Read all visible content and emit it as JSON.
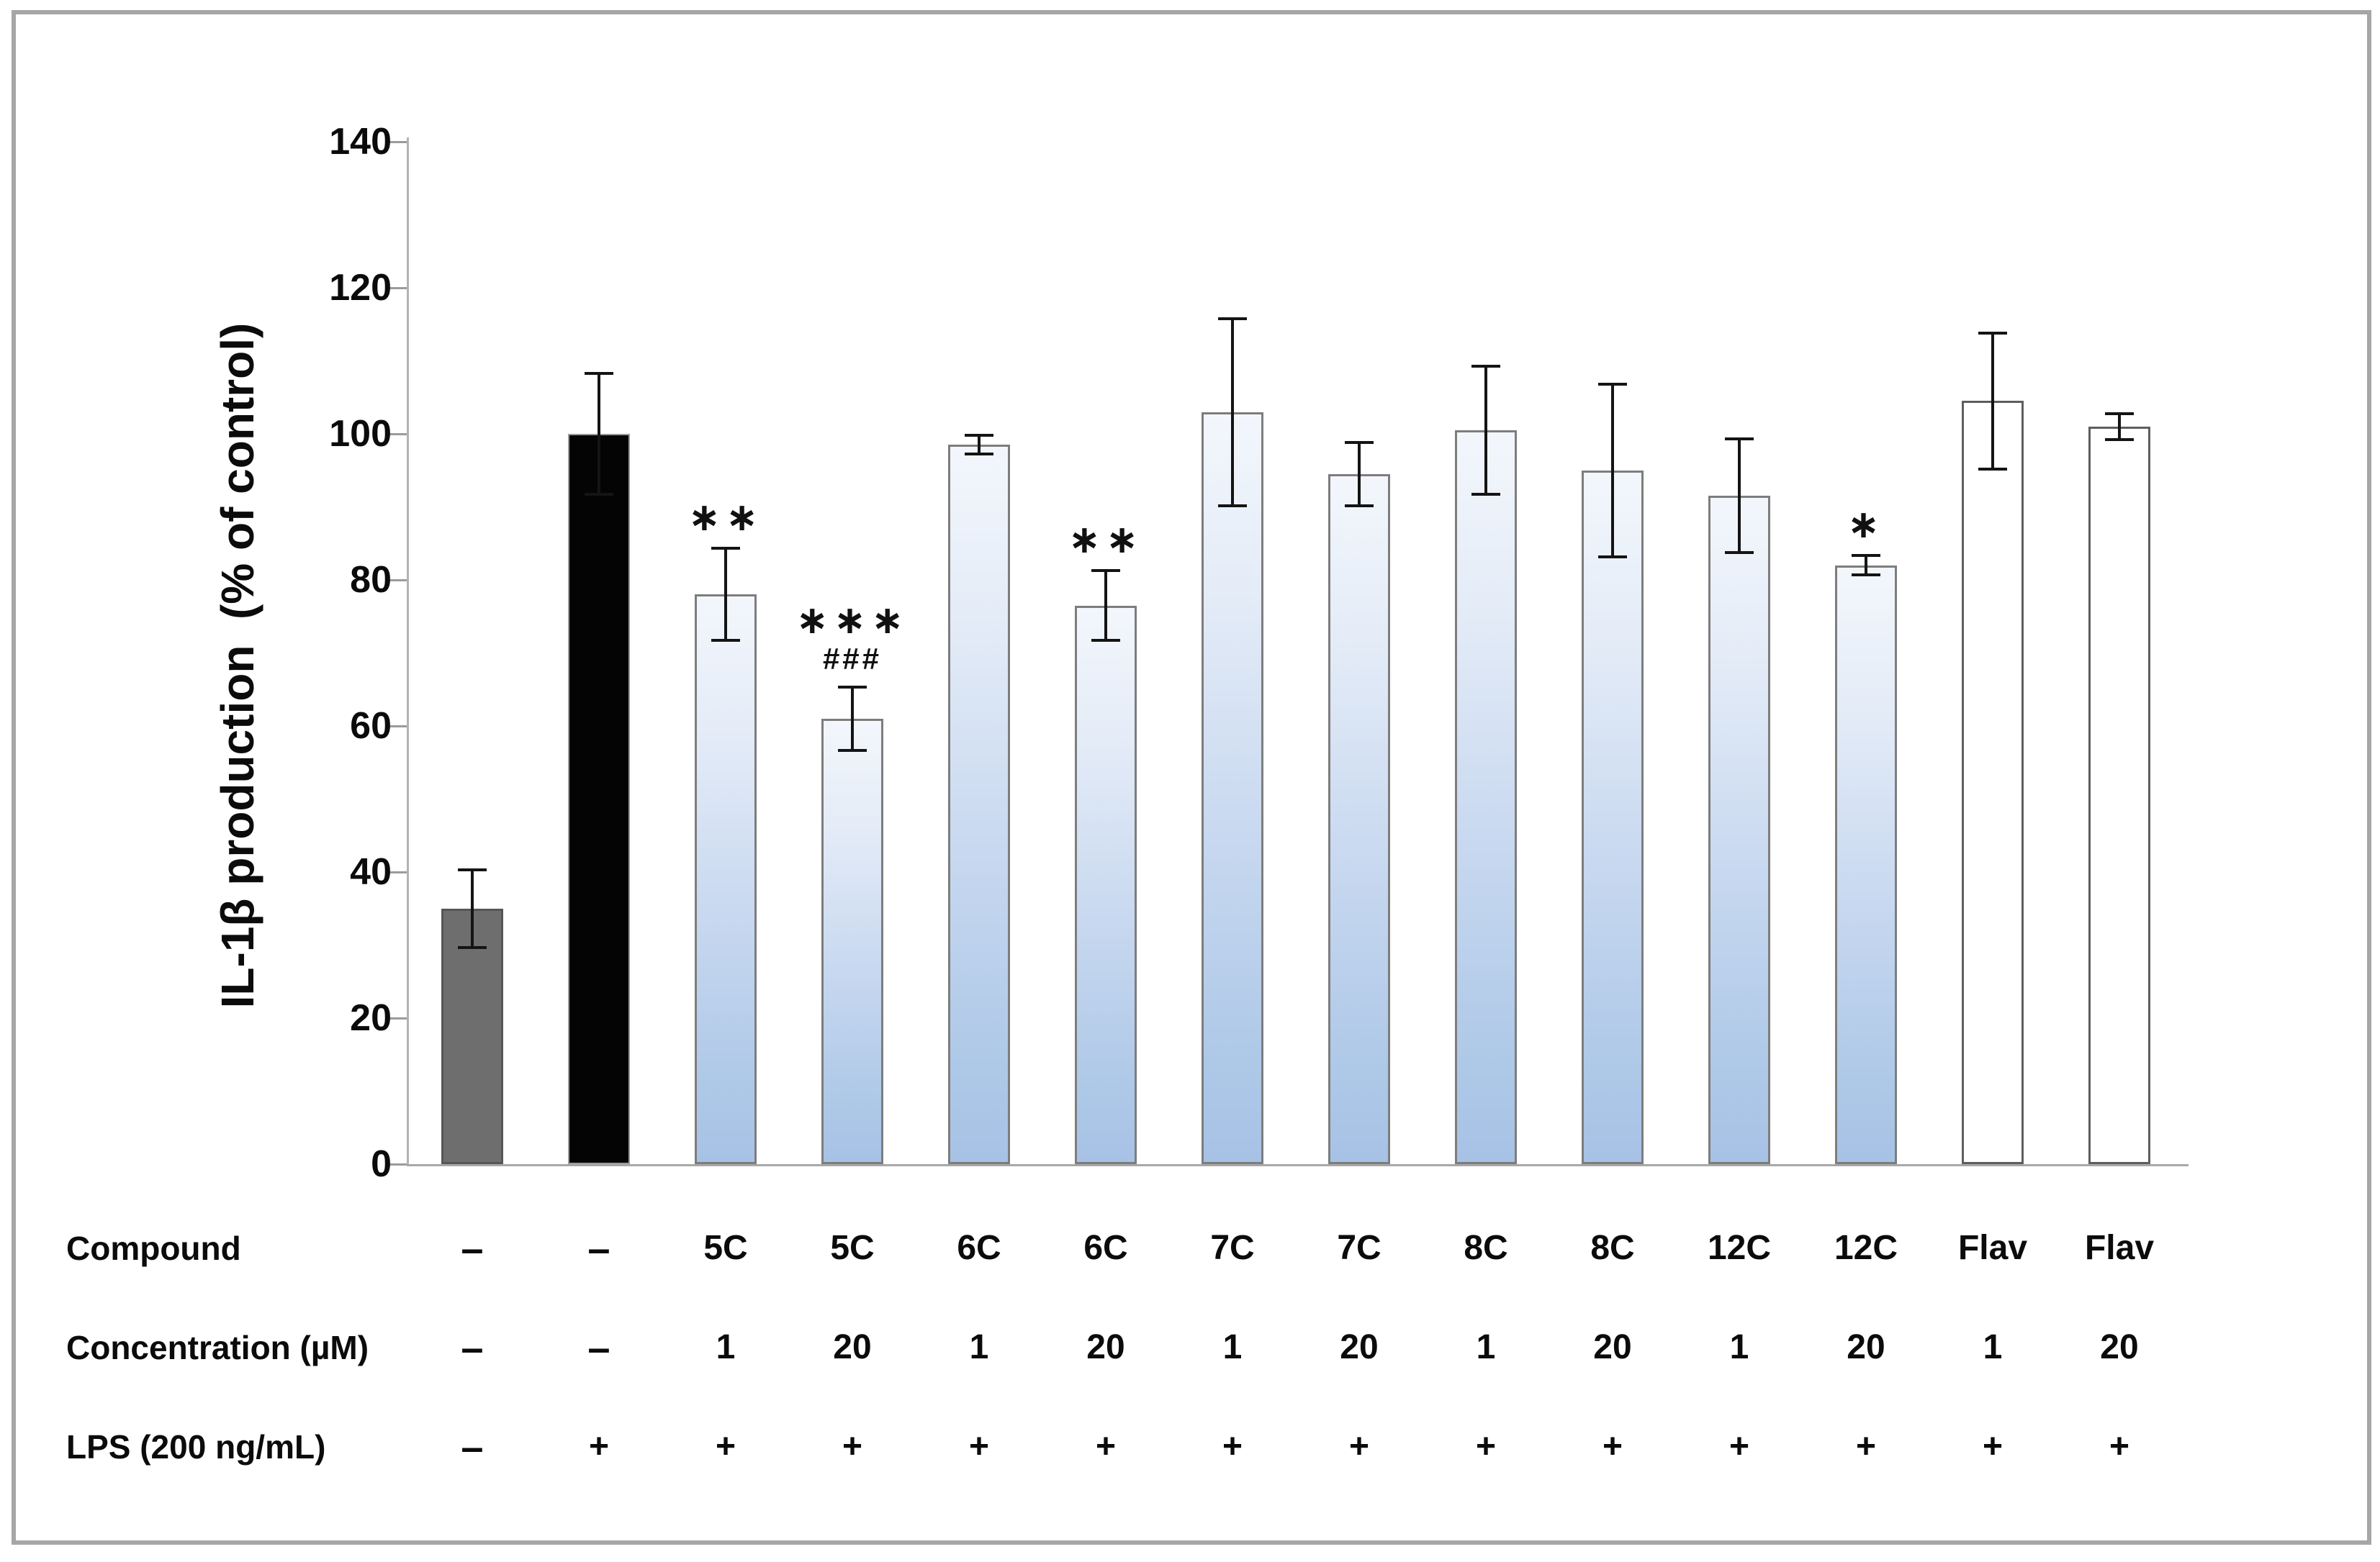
{
  "chart_data": {
    "type": "bar",
    "title": "",
    "ylabel": "IL-1β production  (% of control)",
    "xlabel": "",
    "ylim": [
      0,
      140
    ],
    "yticks": [
      140,
      120,
      100,
      80,
      60,
      40,
      20,
      0
    ],
    "grid": "off",
    "legend": "none",
    "row_labels": [
      "Compound",
      "Concentration (µM)",
      "LPS (200 ng/mL)"
    ],
    "bars": [
      {
        "compound": "–",
        "concentration": "–",
        "lps": "–",
        "value": 35,
        "error": 5.5,
        "style": "gray",
        "annotations": []
      },
      {
        "compound": "–",
        "concentration": "–",
        "lps": "+",
        "value": 100,
        "error": 8.5,
        "style": "black",
        "annotations": []
      },
      {
        "compound": "5C",
        "concentration": "1",
        "lps": "+",
        "value": 78,
        "error": 6.5,
        "style": "blue",
        "annotations": [
          "∗∗"
        ]
      },
      {
        "compound": "5C",
        "concentration": "20",
        "lps": "+",
        "value": 61,
        "error": 4.5,
        "style": "blue",
        "annotations": [
          "∗∗∗",
          "###"
        ]
      },
      {
        "compound": "6C",
        "concentration": "1",
        "lps": "+",
        "value": 98.5,
        "error": 1.5,
        "style": "blue",
        "annotations": []
      },
      {
        "compound": "6C",
        "concentration": "20",
        "lps": "+",
        "value": 76.5,
        "error": 5,
        "style": "blue",
        "annotations": [
          "∗∗"
        ]
      },
      {
        "compound": "7C",
        "concentration": "1",
        "lps": "+",
        "value": 103,
        "error": 13,
        "style": "blue",
        "annotations": []
      },
      {
        "compound": "7C",
        "concentration": "20",
        "lps": "+",
        "value": 94.5,
        "error": 4.5,
        "style": "blue",
        "annotations": []
      },
      {
        "compound": "8C",
        "concentration": "1",
        "lps": "+",
        "value": 100.5,
        "error": 9,
        "style": "blue",
        "annotations": []
      },
      {
        "compound": "8C",
        "concentration": "20",
        "lps": "+",
        "value": 95,
        "error": 12,
        "style": "blue",
        "annotations": []
      },
      {
        "compound": "12C",
        "concentration": "1",
        "lps": "+",
        "value": 91.5,
        "error": 8,
        "style": "blue",
        "annotations": []
      },
      {
        "compound": "12C",
        "concentration": "20",
        "lps": "+",
        "value": 82,
        "error": 1.5,
        "style": "blue",
        "annotations": [
          "∗"
        ]
      },
      {
        "compound": "Flav",
        "concentration": "1",
        "lps": "+",
        "value": 104.5,
        "error": 9.5,
        "style": "white",
        "annotations": []
      },
      {
        "compound": "Flav",
        "concentration": "20",
        "lps": "+",
        "value": 101,
        "error": 2,
        "style": "white",
        "annotations": []
      }
    ],
    "colors": {
      "gray_bar": "#6e6e6e",
      "black_bar": "#040404",
      "blue_bar_top": "#f3f7fc",
      "blue_bar_bottom": "#a7c2e5",
      "white_bar": "#ffffff",
      "bar_border": "#7d7d7d",
      "axis": "#a8a8a8",
      "frame_border": "#a6a6a6",
      "text": "#0b0b0b"
    }
  }
}
